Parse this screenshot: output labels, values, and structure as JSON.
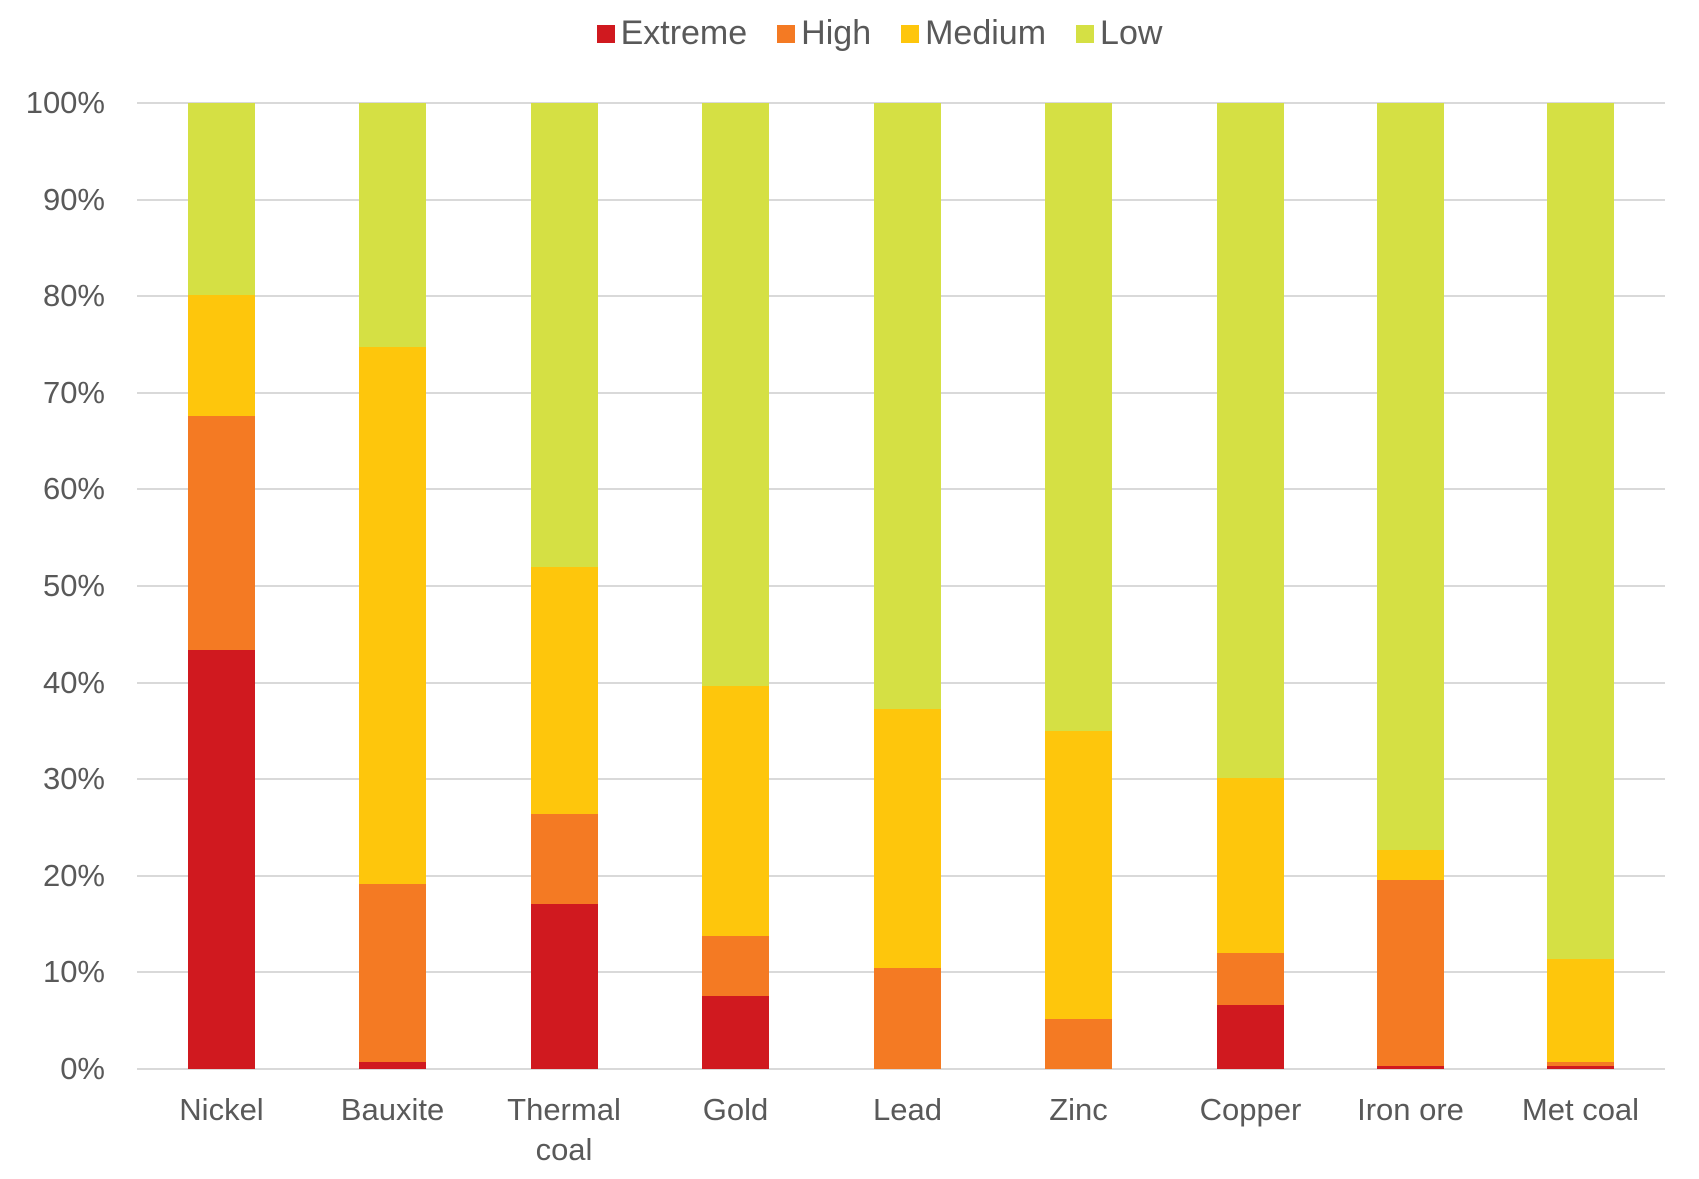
{
  "legend": [
    {
      "label": "Extreme",
      "color": "#d0191f"
    },
    {
      "label": "High",
      "color": "#f47a23"
    },
    {
      "label": "Medium",
      "color": "#fec60c"
    },
    {
      "label": "Low",
      "color": "#d5e044"
    }
  ],
  "yticks": [
    "0%",
    "10%",
    "20%",
    "30%",
    "40%",
    "50%",
    "60%",
    "70%",
    "80%",
    "90%",
    "100%"
  ],
  "chart_data": {
    "type": "bar",
    "stacked": true,
    "percent_stacked": true,
    "title": "",
    "xlabel": "",
    "ylabel": "",
    "ylim": [
      0,
      100
    ],
    "grid": true,
    "legend_position": "top",
    "categories": [
      "Nickel",
      "Bauxite",
      "Thermal coal",
      "Gold",
      "Lead",
      "Zinc",
      "Copper",
      "Iron ore",
      "Met coal"
    ],
    "series": [
      {
        "name": "Extreme",
        "color": "#d0191f",
        "values": [
          43.4,
          0.7,
          17.1,
          7.6,
          0.0,
          0.0,
          6.6,
          0.3,
          0.3
        ]
      },
      {
        "name": "High",
        "color": "#f47a23",
        "values": [
          24.2,
          18.5,
          9.3,
          6.2,
          10.5,
          5.2,
          5.4,
          19.3,
          0.4
        ]
      },
      {
        "name": "Medium",
        "color": "#fec60c",
        "values": [
          12.5,
          55.5,
          25.6,
          25.9,
          26.8,
          29.8,
          18.1,
          3.1,
          10.7
        ]
      },
      {
        "name": "Low",
        "color": "#d5e044",
        "values": [
          19.9,
          25.3,
          48.0,
          60.3,
          62.7,
          65.0,
          69.9,
          77.3,
          88.6
        ]
      }
    ]
  }
}
